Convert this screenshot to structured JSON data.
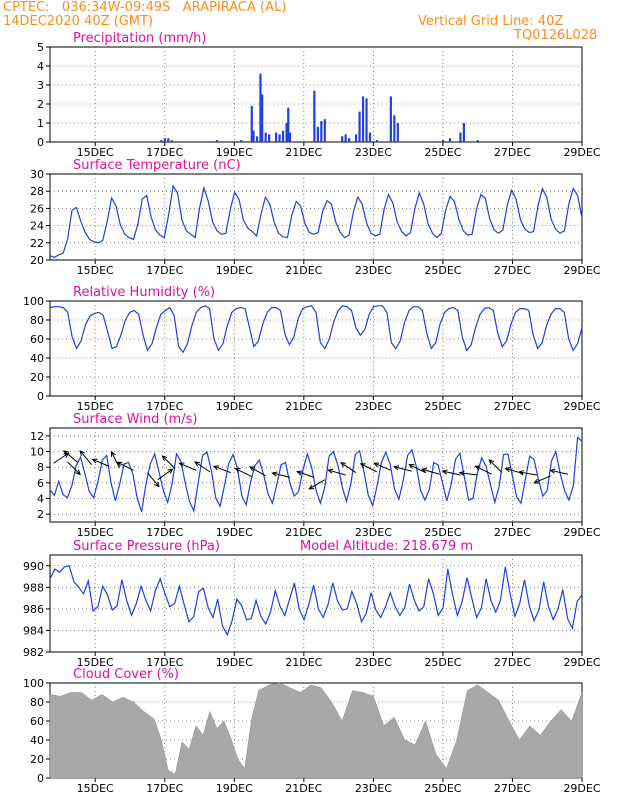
{
  "header": {
    "line1": "CPTEC:   036:34W-09:49S   ARAPIRACA (AL)",
    "line2": "14DEC2020 40Z (GMT)",
    "grid_note": "Vertical Grid Line: 40Z",
    "code": "TQ0126L028"
  },
  "colors": {
    "header": "#ff8c1a",
    "title": "#e0109a",
    "series": "#2040e0",
    "cloud": "#a8a8a8",
    "arrow": "#000000"
  },
  "panels": [
    {
      "id": "precip",
      "title": "Precipitation  (mm/h)"
    },
    {
      "id": "temp",
      "title": "Surface Temperature  (nC)"
    },
    {
      "id": "rh",
      "title": "Relative Humidity  (%)"
    },
    {
      "id": "wind",
      "title": "Surface Wind  (m/s)"
    },
    {
      "id": "pres",
      "title": "Surface Pressure  (hPa)",
      "extra": "Model Altitude:  218.679  m"
    },
    {
      "id": "cloud",
      "title": "Cloud Cover  (%)"
    }
  ],
  "chart_data": [
    {
      "type": "bar",
      "title": "Precipitation  (mm/h)",
      "ylabel": "mm/h",
      "x_range_days": [
        13.7,
        29.0
      ],
      "ylim": [
        0,
        5
      ],
      "yticks": [
        0,
        1,
        2,
        3,
        4,
        5
      ],
      "x_ticks": [
        "15DEC",
        "17DEC",
        "19DEC",
        "21DEC",
        "23DEC",
        "25DEC",
        "27DEC",
        "29DEC"
      ],
      "grid": true,
      "bars": [
        [
          16.9,
          0.1
        ],
        [
          17.0,
          0.2
        ],
        [
          17.1,
          0.2
        ],
        [
          17.2,
          0.1
        ],
        [
          18.5,
          0.1
        ],
        [
          19.2,
          0.1
        ],
        [
          19.5,
          1.9
        ],
        [
          19.55,
          0.6
        ],
        [
          19.65,
          0.3
        ],
        [
          19.75,
          3.6
        ],
        [
          19.8,
          2.5
        ],
        [
          19.9,
          0.5
        ],
        [
          20.0,
          0.4
        ],
        [
          20.2,
          0.5
        ],
        [
          20.3,
          0.4
        ],
        [
          20.4,
          0.6
        ],
        [
          20.5,
          1.0
        ],
        [
          20.55,
          1.8
        ],
        [
          20.6,
          0.5
        ],
        [
          21.3,
          2.7
        ],
        [
          21.4,
          0.8
        ],
        [
          21.5,
          1.1
        ],
        [
          21.6,
          1.2
        ],
        [
          22.1,
          0.3
        ],
        [
          22.2,
          0.4
        ],
        [
          22.3,
          0.2
        ],
        [
          22.5,
          0.4
        ],
        [
          22.6,
          1.6
        ],
        [
          22.7,
          2.4
        ],
        [
          22.8,
          2.3
        ],
        [
          22.9,
          0.5
        ],
        [
          23.1,
          0.1
        ],
        [
          23.5,
          2.4
        ],
        [
          23.6,
          1.4
        ],
        [
          23.7,
          1.0
        ],
        [
          25.0,
          0.1
        ],
        [
          25.2,
          0.2
        ],
        [
          25.5,
          0.5
        ],
        [
          25.6,
          1.0
        ],
        [
          26.0,
          0.1
        ]
      ]
    },
    {
      "type": "line",
      "title": "Surface Temperature  (nC)",
      "ylabel": "nC",
      "ylim": [
        20,
        30
      ],
      "yticks": [
        20,
        22,
        24,
        26,
        28,
        30
      ],
      "grid": true,
      "series": [
        {
          "values": [
            20.5,
            20.3,
            20.6,
            20.8,
            22.4,
            25.8,
            26.1,
            24.5,
            23.2,
            22.4,
            22.1,
            22.0,
            22.3,
            24.5,
            27.2,
            26.3,
            24.1,
            23.0,
            22.6,
            22.4,
            24.2,
            27.1,
            27.5,
            25.0,
            23.5,
            22.9,
            22.6,
            25.3,
            28.6,
            27.8,
            24.7,
            23.4,
            23.0,
            22.6,
            26.0,
            28.4,
            26.8,
            24.4,
            23.4,
            23.0,
            23.1,
            25.9,
            27.9,
            27.0,
            24.6,
            23.7,
            23.3,
            22.8,
            25.3,
            27.3,
            26.5,
            24.4,
            23.1,
            22.7,
            22.6,
            25.2,
            26.8,
            26.3,
            24.2,
            23.2,
            23.0,
            23.2,
            25.6,
            26.9,
            26.5,
            24.4,
            23.2,
            22.6,
            22.9,
            25.6,
            27.3,
            26.5,
            24.3,
            23.1,
            22.8,
            23.0,
            25.9,
            27.6,
            26.6,
            24.4,
            23.3,
            22.8,
            23.2,
            26.0,
            27.8,
            26.5,
            24.2,
            23.1,
            22.6,
            23.1,
            25.8,
            27.4,
            26.8,
            24.7,
            23.4,
            22.9,
            23.0,
            25.9,
            27.6,
            27.2,
            24.8,
            23.5,
            23.1,
            23.5,
            26.4,
            28.1,
            27.1,
            24.7,
            23.6,
            23.2,
            23.3,
            26.3,
            28.3,
            27.3,
            24.7,
            23.6,
            23.1,
            23.4,
            26.5,
            28.3,
            27.5,
            24.9
          ]
        }
      ]
    },
    {
      "type": "line",
      "title": "Relative Humidity  (%)",
      "ylabel": "%",
      "ylim": [
        0,
        100
      ],
      "yticks": [
        0,
        20,
        40,
        60,
        80,
        100
      ],
      "grid": true,
      "series": [
        {
          "values": [
            93,
            94,
            94,
            93,
            88,
            62,
            50,
            58,
            75,
            84,
            87,
            88,
            85,
            68,
            50,
            52,
            64,
            80,
            88,
            90,
            86,
            64,
            48,
            55,
            72,
            86,
            90,
            93,
            85,
            52,
            46,
            55,
            74,
            88,
            93,
            95,
            92,
            60,
            48,
            55,
            74,
            88,
            92,
            93,
            92,
            72,
            52,
            58,
            76,
            88,
            93,
            93,
            90,
            65,
            54,
            62,
            82,
            92,
            94,
            95,
            88,
            56,
            50,
            60,
            78,
            90,
            95,
            94,
            90,
            72,
            64,
            70,
            86,
            94,
            95,
            95,
            88,
            56,
            50,
            58,
            78,
            90,
            94,
            94,
            90,
            66,
            50,
            56,
            76,
            88,
            92,
            93,
            90,
            62,
            48,
            54,
            72,
            86,
            92,
            93,
            90,
            66,
            52,
            58,
            76,
            88,
            92,
            92,
            90,
            64,
            50,
            56,
            74,
            86,
            92,
            92,
            88,
            60,
            48,
            55,
            72
          ]
        }
      ]
    },
    {
      "type": "line",
      "title": "Surface Wind  (m/s)",
      "ylabel": "m/s",
      "ylim": [
        1,
        13
      ],
      "yticks": [
        2,
        4,
        6,
        8,
        10,
        12
      ],
      "grid": true,
      "series": [
        {
          "values": [
            5.1,
            4.4,
            6.2,
            4.5,
            4.1,
            5.6,
            8.2,
            9.3,
            7.2,
            4.9,
            4.1,
            6.2,
            8.9,
            9.5,
            6.0,
            3.7,
            5.9,
            8.4,
            8.6,
            7.1,
            4.0,
            2.3,
            5.8,
            8.4,
            9.7,
            7.4,
            5.0,
            3.5,
            5.9,
            9.7,
            8.8,
            6.0,
            3.6,
            2.4,
            6.1,
            9.5,
            9.9,
            7.6,
            4.1,
            3.0,
            5.6,
            8.5,
            9.6,
            7.8,
            4.3,
            3.2,
            6.1,
            8.2,
            8.9,
            7.0,
            4.6,
            3.4,
            5.8,
            8.3,
            8.6,
            6.0,
            4.3,
            4.9,
            7.6,
            9.7,
            8.0,
            5.1,
            3.4,
            5.4,
            9.4,
            10.0,
            8.3,
            5.5,
            3.6,
            5.9,
            9.6,
            10.1,
            7.4,
            4.4,
            3.1,
            5.6,
            8.6,
            9.9,
            8.4,
            5.2,
            3.9,
            6.3,
            9.5,
            10.2,
            8.1,
            5.0,
            3.8,
            5.2,
            8.6,
            8.3,
            6.0,
            3.7,
            5.8,
            9.0,
            9.8,
            6.8,
            3.8,
            4.0,
            7.2,
            9.2,
            8.1,
            5.8,
            3.5,
            5.5,
            9.6,
            9.7,
            7.0,
            4.2,
            3.4,
            6.4,
            9.4,
            9.0,
            6.5,
            4.3,
            5.0,
            8.8,
            10.0,
            7.2,
            5.0,
            3.8,
            5.6,
            11.8,
            11.3
          ]
        }
      ],
      "vectors": [
        [
          13.8,
          8.5,
          0.6,
          0.4
        ],
        [
          14.2,
          8.7,
          0.5,
          -0.5
        ],
        [
          14.5,
          8.6,
          -0.6,
          0.5
        ],
        [
          14.9,
          8.3,
          -0.5,
          0.6
        ],
        [
          15.4,
          8.1,
          -0.7,
          0.3
        ],
        [
          15.7,
          7.9,
          -0.3,
          0.6
        ],
        [
          16.1,
          7.6,
          -0.8,
          0.4
        ],
        [
          16.5,
          7.3,
          0.5,
          -0.6
        ],
        [
          16.8,
          6.4,
          0.7,
          0.5
        ],
        [
          17.3,
          7.8,
          -0.5,
          0.5
        ],
        [
          17.9,
          7.6,
          -0.7,
          0.3
        ],
        [
          18.3,
          7.4,
          -0.6,
          0.4
        ],
        [
          18.9,
          7.3,
          -0.8,
          0.3
        ],
        [
          19.5,
          6.8,
          -0.6,
          0.3
        ],
        [
          19.9,
          6.9,
          -0.7,
          0.4
        ],
        [
          20.6,
          6.7,
          -0.8,
          0.2
        ],
        [
          21.3,
          6.7,
          -0.6,
          0.2
        ],
        [
          21.6,
          6.4,
          -0.5,
          -0.3
        ],
        [
          22.2,
          7.0,
          -0.7,
          0.2
        ],
        [
          22.5,
          7.3,
          -0.6,
          0.4
        ],
        [
          23.1,
          7.4,
          -0.8,
          0.4
        ],
        [
          23.5,
          7.6,
          -0.7,
          0.3
        ],
        [
          24.1,
          7.5,
          -0.8,
          0.2
        ],
        [
          24.5,
          7.3,
          -0.6,
          0.3
        ],
        [
          24.9,
          7.1,
          -0.7,
          0.2
        ],
        [
          25.5,
          7.0,
          -0.9,
          0.2
        ],
        [
          26.0,
          7.0,
          -0.8,
          0.1
        ],
        [
          26.4,
          7.1,
          -0.6,
          0.3
        ],
        [
          26.7,
          7.3,
          -0.4,
          0.4
        ],
        [
          27.3,
          7.2,
          -0.7,
          0.2
        ],
        [
          27.7,
          7.0,
          -0.6,
          0.1
        ],
        [
          28.1,
          6.9,
          -0.7,
          -0.3
        ],
        [
          28.6,
          7.1,
          -0.9,
          0.2
        ]
      ]
    },
    {
      "type": "line",
      "title": "Surface Pressure  (hPa)",
      "ylabel": "hPa",
      "ylim": [
        982,
        991
      ],
      "yticks": [
        982,
        984,
        986,
        988,
        990
      ],
      "grid": true,
      "annotation": "Model Altitude:  218.679  m",
      "series": [
        {
          "values": [
            988.8,
            989.7,
            989.4,
            989.9,
            990.0,
            988.5,
            988.0,
            987.4,
            988.6,
            985.8,
            986.2,
            988.1,
            987.3,
            985.9,
            986.3,
            988.7,
            986.8,
            985.4,
            986.5,
            988.1,
            986.8,
            985.8,
            987.7,
            988.8,
            987.4,
            986.2,
            986.5,
            988.1,
            986.4,
            984.8,
            985.3,
            987.6,
            987.9,
            986.1,
            985.2,
            986.9,
            984.4,
            983.6,
            984.9,
            986.9,
            986.3,
            985.0,
            985.1,
            986.8,
            985.3,
            984.6,
            985.7,
            987.7,
            986.2,
            985.4,
            986.9,
            988.4,
            986.0,
            985.0,
            986.4,
            988.2,
            986.0,
            985.2,
            986.4,
            988.4,
            986.7,
            985.9,
            986.0,
            987.6,
            986.5,
            984.8,
            985.6,
            987.5,
            985.9,
            985.2,
            986.2,
            987.5,
            986.2,
            985.4,
            986.1,
            988.3,
            986.8,
            985.8,
            986.2,
            988.8,
            987.4,
            985.4,
            986.1,
            989.7,
            987.3,
            985.4,
            986.7,
            988.9,
            987.0,
            985.2,
            986.1,
            988.8,
            986.8,
            985.7,
            986.8,
            989.9,
            987.4,
            985.3,
            986.5,
            988.7,
            986.3,
            984.9,
            985.9,
            988.5,
            986.2,
            985.0,
            986.0,
            987.8,
            985.1,
            984.2,
            986.7,
            987.3
          ]
        }
      ]
    },
    {
      "type": "area",
      "title": "Cloud Cover  (%)",
      "ylabel": "%",
      "ylim": [
        0,
        100
      ],
      "yticks": [
        0,
        20,
        40,
        60,
        80,
        100
      ],
      "grid": true,
      "x": [
        13.7,
        14.0,
        14.3,
        14.6,
        14.9,
        15.2,
        15.5,
        15.8,
        16.1,
        16.4,
        16.7,
        16.9,
        17.1,
        17.3,
        17.5,
        17.7,
        17.9,
        18.1,
        18.3,
        18.5,
        18.7,
        18.9,
        19.1,
        19.3,
        19.5,
        19.7,
        20.0,
        20.3,
        20.6,
        20.9,
        21.2,
        21.5,
        21.8,
        22.1,
        22.4,
        22.7,
        23.0,
        23.3,
        23.6,
        23.9,
        24.2,
        24.5,
        24.8,
        25.1,
        25.4,
        25.7,
        26.0,
        26.3,
        26.6,
        26.9,
        27.2,
        27.5,
        27.8,
        28.1,
        28.4,
        28.7,
        29.0
      ],
      "values": [
        88,
        86,
        90,
        90,
        82,
        88,
        80,
        85,
        80,
        70,
        62,
        40,
        8,
        4,
        38,
        30,
        55,
        45,
        70,
        52,
        60,
        42,
        20,
        10,
        62,
        92,
        98,
        100,
        95,
        90,
        98,
        95,
        80,
        60,
        92,
        90,
        86,
        55,
        64,
        40,
        35,
        60,
        25,
        10,
        40,
        92,
        98,
        90,
        82,
        60,
        40,
        55,
        45,
        60,
        72,
        60,
        90
      ]
    }
  ]
}
